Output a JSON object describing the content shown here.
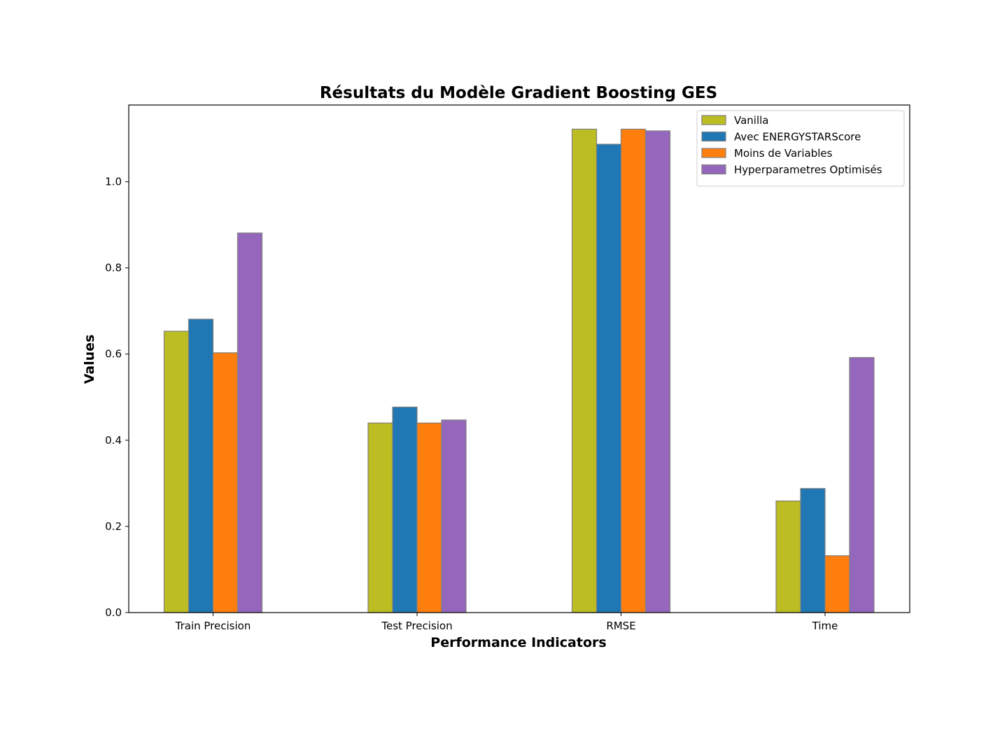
{
  "chart_data": {
    "type": "bar",
    "title": "Résultats du Modèle Gradient Boosting GES",
    "xlabel": "Performance Indicators",
    "ylabel": "Values",
    "categories": [
      "Train Precision",
      "Test Precision",
      "RMSE",
      "Time"
    ],
    "series": [
      {
        "name": "Vanilla",
        "color": "#bcbd22",
        "values": [
          0.653,
          0.44,
          1.122,
          0.259
        ]
      },
      {
        "name": "Avec ENERGYSTARScore",
        "color": "#1f77b4",
        "values": [
          0.681,
          0.477,
          1.087,
          0.288
        ]
      },
      {
        "name": "Moins de Variables",
        "color": "#ff7f0e",
        "values": [
          0.603,
          0.44,
          1.122,
          0.132
        ]
      },
      {
        "name": "Hyperparametres Optimisés",
        "color": "#9467bd",
        "values": [
          0.881,
          0.447,
          1.118,
          0.592
        ]
      }
    ],
    "ylim": [
      0,
      1.178
    ],
    "yticks": [
      "0.0",
      "0.2",
      "0.4",
      "0.6",
      "0.8",
      "1.0"
    ],
    "legend": "top-right",
    "grid": false,
    "bar_edge_color": "#808080"
  }
}
